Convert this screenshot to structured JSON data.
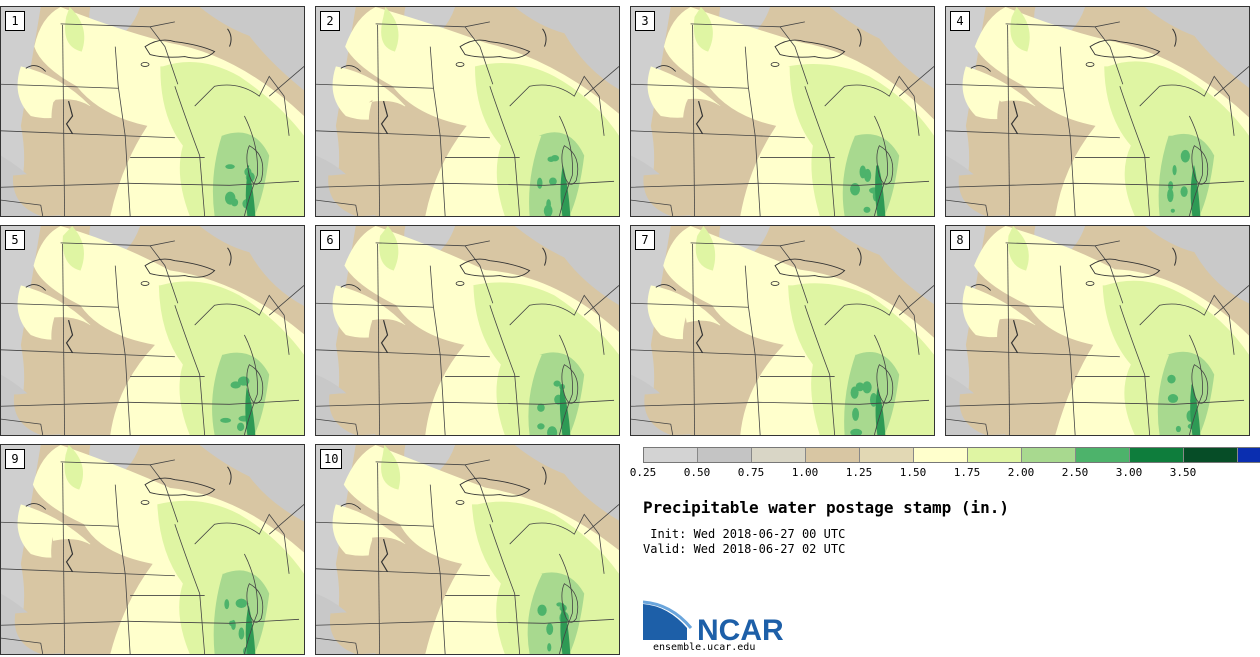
{
  "panels": [
    {
      "label": "1"
    },
    {
      "label": "2"
    },
    {
      "label": "3"
    },
    {
      "label": "4"
    },
    {
      "label": "5"
    },
    {
      "label": "6"
    },
    {
      "label": "7"
    },
    {
      "label": "8"
    },
    {
      "label": "9"
    },
    {
      "label": "10"
    }
  ],
  "legend": {
    "colors": [
      "#d3d3d3",
      "#c4c4c4",
      "#d9d6c6",
      "#d8c6a3",
      "#e2d8b4",
      "#ffffcc",
      "#dff5a3",
      "#a8d98f",
      "#4db36b",
      "#0e7d3c",
      "#064d27",
      "#0a2eb0"
    ],
    "tick_labels": [
      "0.25",
      "0.50",
      "0.75",
      "1.00",
      "1.25",
      "1.50",
      "1.75",
      "2.00",
      "2.50",
      "3.00",
      "3.50"
    ]
  },
  "title": "Precipitable water postage stamp (in.)",
  "init_line": " Init: Wed 2018-06-27 00 UTC",
  "valid_line": "Valid: Wed 2018-06-27 02 UTC",
  "logo": {
    "text": "NCAR",
    "url": "ensemble.ucar.edu",
    "color": "#1d5fa8"
  }
}
